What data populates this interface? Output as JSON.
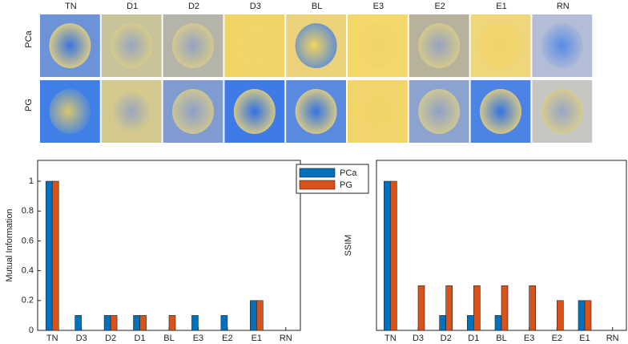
{
  "image_grid": {
    "columns": [
      "TN",
      "D1",
      "D2",
      "D3",
      "BL",
      "E3",
      "E2",
      "E1",
      "RN"
    ],
    "rows": [
      "PCa",
      "PG"
    ]
  },
  "chart_data": [
    {
      "type": "bar",
      "y_label": "Mutual Information",
      "categories": [
        "TN",
        "D3",
        "D2",
        "D1",
        "BL",
        "E3",
        "E2",
        "E1",
        "RN"
      ],
      "series": [
        {
          "name": "PCa",
          "color": "#0072bd",
          "values": [
            1,
            0.1,
            0.1,
            0.1,
            0,
            0.1,
            0.1,
            0.2,
            0
          ]
        },
        {
          "name": "PG",
          "color": "#d95319",
          "values": [
            1,
            0,
            0.1,
            0.1,
            0.1,
            0,
            0,
            0.2,
            0
          ]
        }
      ],
      "ylim": [
        0,
        1.14
      ],
      "yticks": [
        0,
        0.2,
        0.4,
        0.6,
        0.8,
        1
      ],
      "legend": "top-right"
    },
    {
      "type": "bar",
      "y_label": "SSIM",
      "categories": [
        "TN",
        "D3",
        "D2",
        "D1",
        "BL",
        "E3",
        "E2",
        "E1",
        "RN"
      ],
      "series": [
        {
          "name": "PCa",
          "color": "#0072bd",
          "values": [
            1,
            0,
            0.1,
            0.1,
            0.1,
            0,
            0,
            0.2,
            0
          ]
        },
        {
          "name": "PG",
          "color": "#d95319",
          "values": [
            1,
            0.3,
            0.3,
            0.3,
            0.3,
            0.3,
            0.2,
            0.2,
            0
          ]
        }
      ],
      "ylim": [
        0,
        1.14
      ]
    }
  ]
}
